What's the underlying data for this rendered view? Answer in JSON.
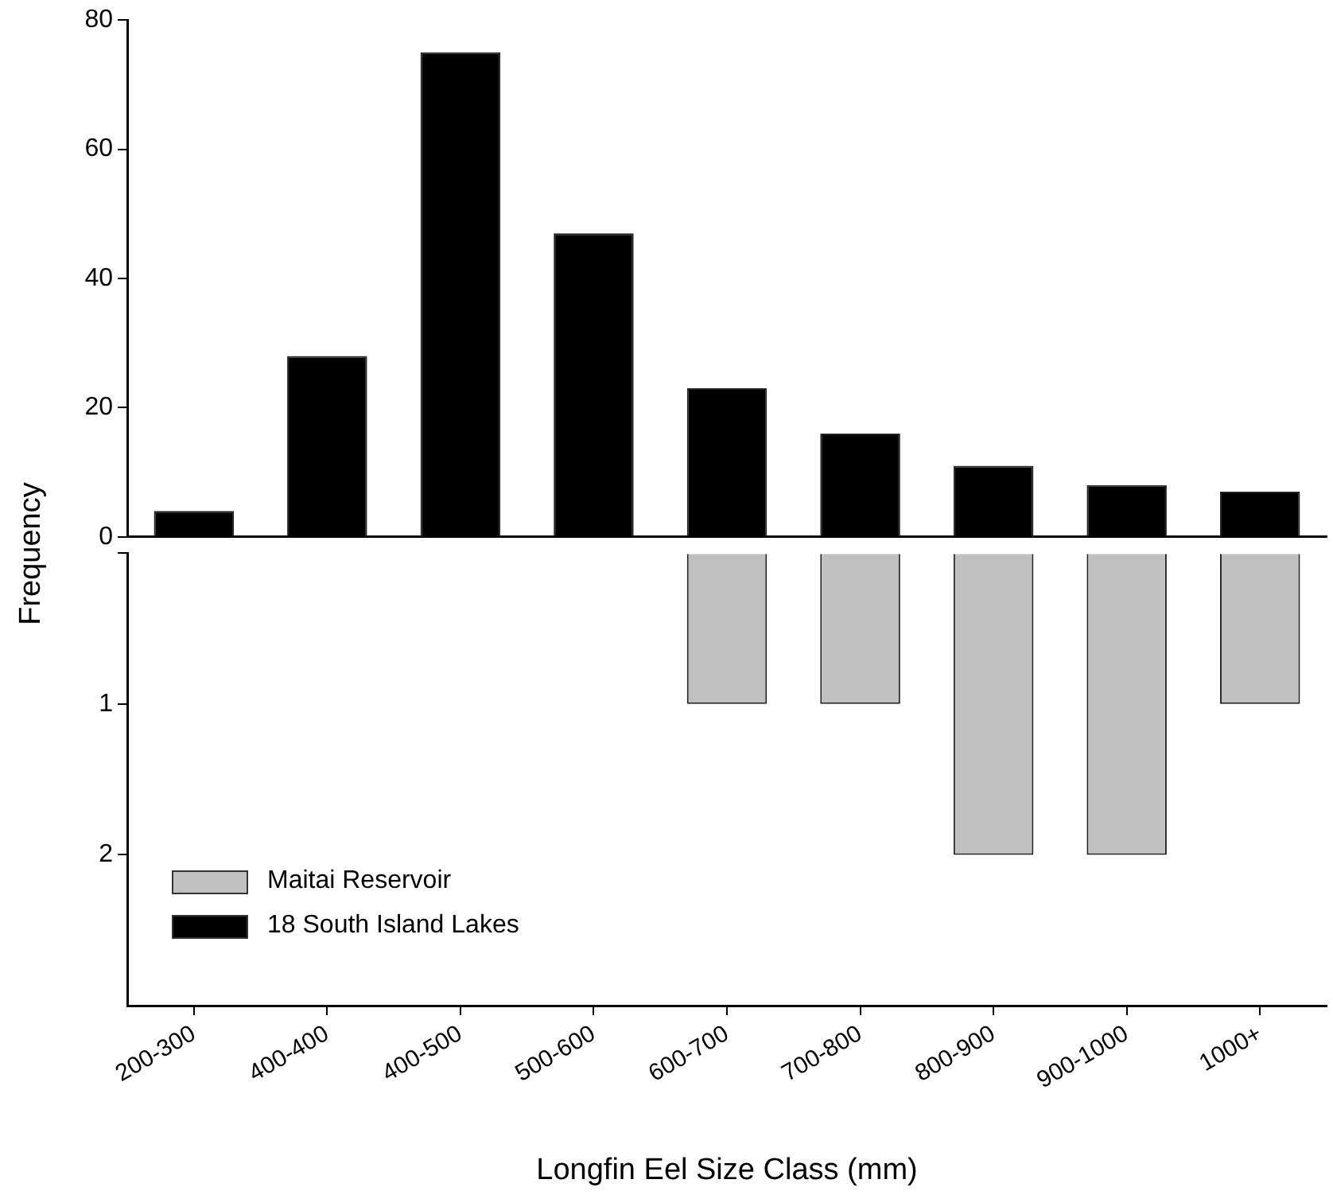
{
  "chart_data": [
    {
      "type": "bar",
      "ylabel": "Frequency",
      "categories": [
        null,
        null,
        null,
        null,
        null,
        null,
        null,
        null,
        null
      ],
      "series": [
        {
          "name": "18 South Island Lakes",
          "color": "#000000",
          "values": [
            4,
            28,
            75,
            47,
            23,
            16,
            11,
            8,
            7
          ]
        }
      ],
      "ylim": [
        0,
        80
      ],
      "yticks": [
        0,
        20,
        40,
        60,
        80
      ],
      "tick_labels": "y",
      "legend": "bottom left",
      "grid": false
    },
    {
      "type": "bar",
      "xlabel": "Longfin Eel Size Class (mm)",
      "categories": [
        "200-300",
        "400-400",
        "400-500",
        "500-600",
        "600-700",
        "700-800",
        "800-900",
        "900-1000",
        "1000+"
      ],
      "series": [
        {
          "name": "Maitai Reservoir",
          "color": "#c0c0c0",
          "values": [
            null,
            null,
            null,
            null,
            1,
            1,
            2,
            2,
            1
          ]
        }
      ],
      "ylim": [
        3,
        0
      ],
      "yticks": [
        {
          "value": 0,
          "label": null
        },
        1,
        2
      ],
      "legend": "bottom left",
      "grid": false
    }
  ]
}
